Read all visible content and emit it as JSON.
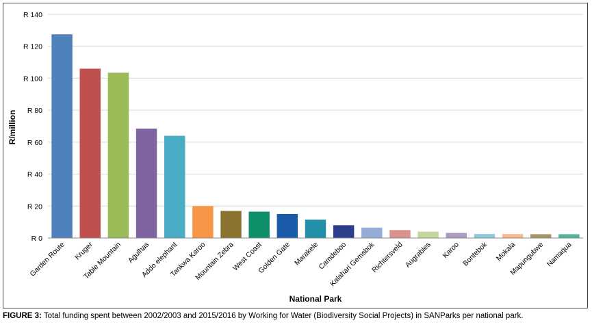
{
  "caption": {
    "label": "FIGURE 3:",
    "text": "Total funding spent between 2002/2003 and 2015/2016 by Working for Water (Biodiversity Social Projects) in SANParks per national park."
  },
  "chart_data": {
    "type": "bar",
    "xlabel": "National Park",
    "ylabel": "R/million",
    "ylim": [
      0,
      140
    ],
    "y_ticks": [
      0,
      20,
      40,
      60,
      80,
      100,
      120,
      140
    ],
    "y_tick_labels": [
      "R 0",
      "R 20",
      "R 40",
      "R 60",
      "R 80",
      "R 100",
      "R 120",
      "R 140"
    ],
    "grid": "horizontal",
    "categories": [
      "Garden Route",
      "Kruger",
      "Table Mountain",
      "Agulhas",
      "Addo elephant",
      "Tankwa Karoo",
      "Mountain Zebra",
      "West Coast",
      "Golden Gate",
      "Marakele",
      "Camdeboo",
      "Kalahari Gemsbok",
      "Richtersveld",
      "Augrabies",
      "Karoo",
      "Bontebok",
      "Mokala",
      "Mapungubwe",
      "Namaqua"
    ],
    "values": [
      127.5,
      106,
      103.5,
      68.5,
      64,
      20,
      17,
      16.5,
      15,
      11.5,
      8,
      6.5,
      5,
      4,
      3.2,
      2.5,
      2.5,
      2.4,
      2.4
    ],
    "colors": [
      "#4f81bd",
      "#c0504d",
      "#9bbb59",
      "#8064a2",
      "#4bacc6",
      "#f79646",
      "#8c7330",
      "#0e8f6a",
      "#1a5aa8",
      "#2190a8",
      "#2c3e8c",
      "#93add6",
      "#da928f",
      "#c3d69b",
      "#a99bc1",
      "#8ec8d9",
      "#fab98a",
      "#a49363",
      "#52b39b"
    ]
  }
}
